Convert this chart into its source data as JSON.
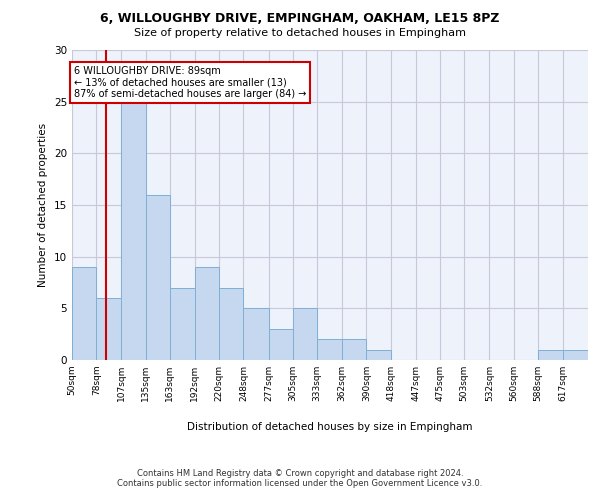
{
  "title1": "6, WILLOUGHBY DRIVE, EMPINGHAM, OAKHAM, LE15 8PZ",
  "title2": "Size of property relative to detached houses in Empingham",
  "xlabel": "Distribution of detached houses by size in Empingham",
  "ylabel": "Number of detached properties",
  "footer1": "Contains HM Land Registry data © Crown copyright and database right 2024.",
  "footer2": "Contains public sector information licensed under the Open Government Licence v3.0.",
  "annotation_line1": "6 WILLOUGHBY DRIVE: 89sqm",
  "annotation_line2": "← 13% of detached houses are smaller (13)",
  "annotation_line3": "87% of semi-detached houses are larger (84) →",
  "property_value": 89,
  "bar_left_edges": [
    50,
    78,
    107,
    135,
    163,
    192,
    220,
    248,
    277,
    305,
    333,
    362,
    390,
    418,
    447,
    475,
    503,
    532,
    560,
    588,
    617
  ],
  "bar_heights": [
    9,
    6,
    25,
    16,
    7,
    9,
    7,
    5,
    3,
    5,
    2,
    2,
    1,
    0,
    0,
    0,
    0,
    0,
    0,
    1,
    1
  ],
  "bar_color": "#c5d8f0",
  "bar_edge_color": "#7fafd4",
  "vline_x": 89,
  "vline_color": "#cc0000",
  "annotation_box_color": "#cc0000",
  "grid_color": "#c8c8d8",
  "bg_color": "#eef2fb",
  "ylim": [
    0,
    30
  ],
  "yticks": [
    0,
    5,
    10,
    15,
    20,
    25,
    30
  ],
  "tick_labels": [
    "50sqm",
    "78sqm",
    "107sqm",
    "135sqm",
    "163sqm",
    "192sqm",
    "220sqm",
    "248sqm",
    "277sqm",
    "305sqm",
    "333sqm",
    "362sqm",
    "390sqm",
    "418sqm",
    "447sqm",
    "475sqm",
    "503sqm",
    "532sqm",
    "560sqm",
    "588sqm",
    "617sqm"
  ]
}
